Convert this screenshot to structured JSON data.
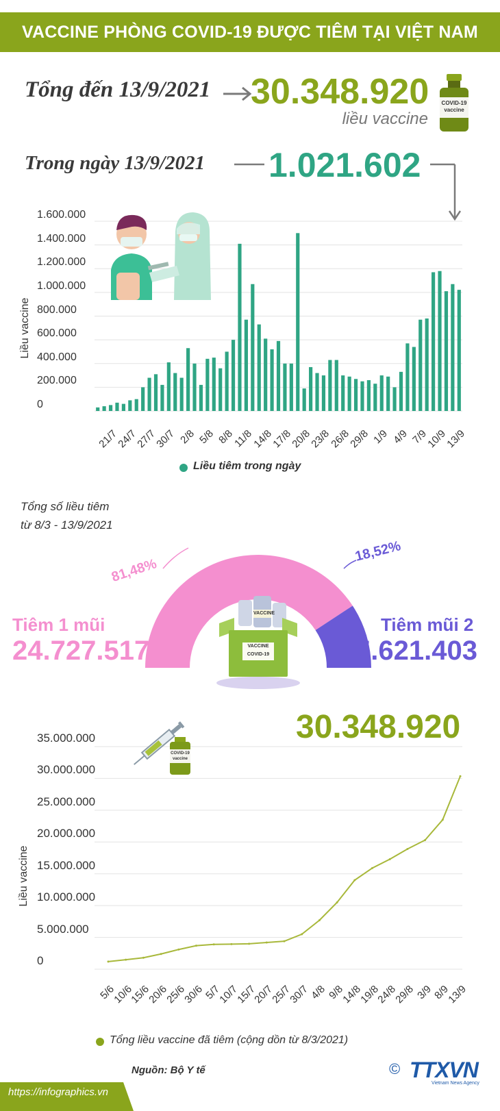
{
  "header": {
    "title": "VACCINE PHÒNG COVID-19 ĐƯỢC TIÊM TẠI VIỆT NAM"
  },
  "summary": {
    "total_label": "Tổng đến 13/9/2021",
    "total_value": "30.348.920",
    "total_unit": "liều vaccine",
    "vial_text": "COVID-19 vaccine",
    "day_label": "Trong ngày 13/9/2021",
    "day_value": "1.021.602"
  },
  "colors": {
    "brand_green": "#8aa51c",
    "teal": "#2fa584",
    "pink": "#f48fcf",
    "purple": "#6a5ad6",
    "grid": "#e3e3e3"
  },
  "daily_chart": {
    "ylabel": "Liều vaccine",
    "legend": "Liều tiêm trong ngày",
    "y_ticks": [
      "1.600.000",
      "1.400.000",
      "1.200.000",
      "1.000.000",
      "800.000",
      "600.000",
      "400.000",
      "200.000",
      "0"
    ],
    "x_ticks": [
      "21/7",
      "24/7",
      "27/7",
      "30/7",
      "2/8",
      "5/8",
      "8/8",
      "11/8",
      "14/8",
      "17/8",
      "20/8",
      "23/8",
      "26/8",
      "29/8",
      "1/9",
      "4/9",
      "7/9",
      "10/9",
      "13/9"
    ]
  },
  "donut": {
    "caption_line1": "Tổng số liều tiêm",
    "caption_line2": "từ 8/3 - 13/9/2021",
    "dose1_label": "Tiêm 1 mũi",
    "dose1_value": "24.727.517",
    "dose1_pct": "81,48%",
    "dose2_label": "Tiêm mũi 2",
    "dose2_value": "5.621.403",
    "dose2_pct": "18,52%",
    "box_label_1": "VACCINE",
    "box_label_2": "COVID-19",
    "vial_label": "VACCINE"
  },
  "cumulative_chart": {
    "headline": "30.348.920",
    "ylabel": "Liều vaccine",
    "legend": "Tổng liều vaccine đã tiêm (cộng dồn từ 8/3/2021)",
    "vial_text": "COVID-19 vaccine",
    "y_ticks": [
      "35.000.000",
      "30.000.000",
      "25.000.000",
      "20.000.000",
      "15.000.000",
      "10.000.000",
      "5.000.000",
      "0"
    ],
    "x_ticks": [
      "5/6",
      "10/6",
      "15/6",
      "20/6",
      "25/6",
      "30/6",
      "5/7",
      "10/7",
      "15/7",
      "20/7",
      "25/7",
      "30/7",
      "4/8",
      "9/8",
      "14/8",
      "19/8",
      "24/8",
      "29/8",
      "3/9",
      "8/9",
      "13/9"
    ]
  },
  "footer": {
    "source": "Nguồn: Bộ Y tế",
    "url": "https://infographics.vn",
    "logo": "TTXVN",
    "copyright": "©",
    "agency": "Vietnam News Agency"
  },
  "chart_data": [
    {
      "type": "bar",
      "ylabel": "Liều vaccine",
      "ylim": [
        0,
        1600000
      ],
      "x_ticks_shown": [
        "21/7",
        "24/7",
        "27/7",
        "30/7",
        "2/8",
        "5/8",
        "8/8",
        "11/8",
        "14/8",
        "17/8",
        "20/8",
        "23/8",
        "26/8",
        "29/8",
        "1/9",
        "4/9",
        "7/9",
        "10/9",
        "13/9"
      ],
      "categories": [
        "19/7",
        "20/7",
        "21/7",
        "22/7",
        "23/7",
        "24/7",
        "25/7",
        "26/7",
        "27/7",
        "28/7",
        "29/7",
        "30/7",
        "31/7",
        "1/8",
        "2/8",
        "3/8",
        "4/8",
        "5/8",
        "6/8",
        "7/8",
        "8/8",
        "9/8",
        "10/8",
        "11/8",
        "12/8",
        "13/8",
        "14/8",
        "15/8",
        "16/8",
        "17/8",
        "18/8",
        "19/8",
        "20/8",
        "21/8",
        "22/8",
        "23/8",
        "24/8",
        "25/8",
        "26/8",
        "27/8",
        "28/8",
        "29/8",
        "30/8",
        "31/8",
        "1/9",
        "2/9",
        "3/9",
        "4/9",
        "5/9",
        "6/9",
        "7/9",
        "8/9",
        "9/9",
        "10/9",
        "11/9",
        "12/9",
        "13/9"
      ],
      "series": [
        {
          "name": "Liều tiêm trong ngày",
          "values": [
            30000,
            40000,
            50000,
            70000,
            60000,
            90000,
            100000,
            200000,
            280000,
            310000,
            220000,
            410000,
            320000,
            280000,
            530000,
            400000,
            220000,
            440000,
            450000,
            360000,
            500000,
            600000,
            1410000,
            770000,
            1070000,
            730000,
            610000,
            520000,
            590000,
            400000,
            400000,
            1500000,
            190000,
            370000,
            320000,
            300000,
            430000,
            430000,
            300000,
            290000,
            270000,
            250000,
            260000,
            230000,
            300000,
            290000,
            200000,
            330000,
            570000,
            540000,
            770000,
            780000,
            1170000,
            1180000,
            1010000,
            1070000,
            1021602
          ]
        }
      ]
    },
    {
      "type": "pie",
      "title": "Tổng số liều tiêm từ 8/3 - 13/9/2021",
      "labels": [
        "Tiêm 1 mũi",
        "Tiêm mũi 2"
      ],
      "values": [
        24727517,
        5621403
      ],
      "percentages": [
        81.48,
        18.52
      ]
    },
    {
      "type": "line",
      "ylabel": "Liều vaccine",
      "ylim": [
        0,
        35000000
      ],
      "x": [
        "5/6",
        "10/6",
        "15/6",
        "20/6",
        "25/6",
        "30/6",
        "5/7",
        "10/7",
        "15/7",
        "20/7",
        "25/7",
        "30/7",
        "4/8",
        "9/8",
        "14/8",
        "19/8",
        "24/8",
        "29/8",
        "3/9",
        "8/9",
        "13/9"
      ],
      "series": [
        {
          "name": "Tổng liều vaccine đã tiêm (cộng dồn từ 8/3/2021)",
          "values": [
            1200000,
            1500000,
            1800000,
            2400000,
            3100000,
            3700000,
            3900000,
            3950000,
            4000000,
            4200000,
            4400000,
            5500000,
            7700000,
            10500000,
            14000000,
            15900000,
            17300000,
            18900000,
            20300000,
            23500000,
            30348920
          ]
        }
      ]
    }
  ]
}
